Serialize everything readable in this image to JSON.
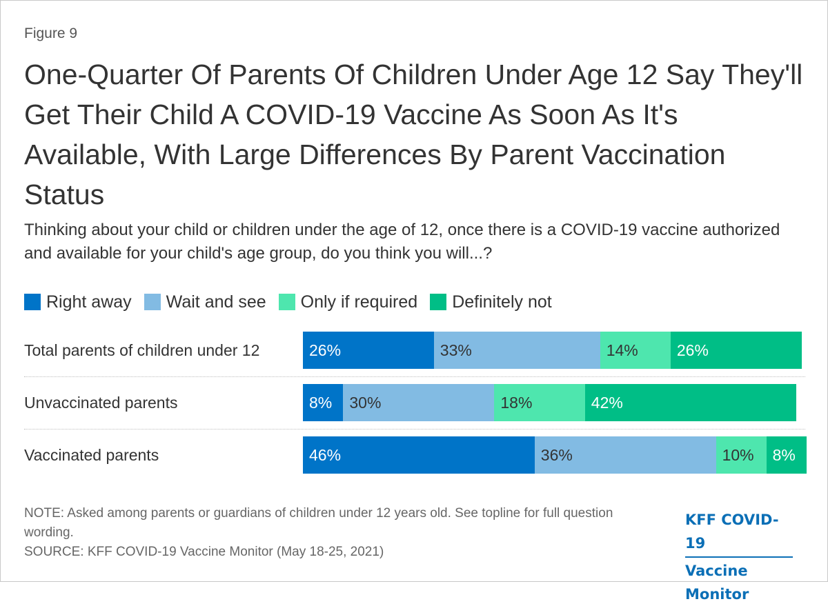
{
  "figure_label": "Figure 9",
  "title": "One-Quarter Of Parents Of Children Under Age 12 Say They'll Get Their Child A COVID-19 Vaccine As Soon As It's Available, With Large Differences By Parent Vaccination Status",
  "subtitle": "Thinking about your child or children under the age of 12, once there is a COVID-19 vaccine authorized and available for your child's age group, do you think you will...?",
  "note": "NOTE: Asked among parents or guardians of children under 12 years old. See topline for full question wording.",
  "source": "SOURCE: KFF COVID-19 Vaccine Monitor (May 18-25, 2021)",
  "logo": {
    "line1": "KFF COVID-19",
    "line2": "Vaccine Monitor"
  },
  "colors": {
    "right_away": "#0074c8",
    "wait_and_see": "#82bbe3",
    "only_if_required": "#4ee6ae",
    "definitely_not": "#00be86",
    "text_dark": "#333333",
    "text_light": "#ffffff"
  },
  "chart_data": {
    "type": "bar",
    "orientation": "horizontal-stacked",
    "title": "One-Quarter Of Parents Of Children Under Age 12 Say They'll Get Their Child A COVID-19 Vaccine As Soon As It's Available, With Large Differences By Parent Vaccination Status",
    "xlim": [
      0,
      100
    ],
    "legend_position": "top-left",
    "categories": [
      "Total parents of children under 12",
      "Unvaccinated parents",
      "Vaccinated parents"
    ],
    "series": [
      {
        "name": "Right away",
        "color": "#0074c8",
        "text_color": "#ffffff",
        "values": [
          26,
          8,
          46
        ],
        "labels": [
          "26%",
          "8%",
          "46%"
        ]
      },
      {
        "name": "Wait and see",
        "color": "#82bbe3",
        "text_color": "#333333",
        "values": [
          33,
          30,
          36
        ],
        "labels": [
          "33%",
          "30%",
          "36%"
        ]
      },
      {
        "name": "Only if required",
        "color": "#4ee6ae",
        "text_color": "#333333",
        "values": [
          14,
          18,
          10
        ],
        "labels": [
          "14%",
          "18%",
          "10%"
        ]
      },
      {
        "name": "Definitely not",
        "color": "#00be86",
        "text_color": "#ffffff",
        "values": [
          26,
          42,
          8
        ],
        "labels": [
          "26%",
          "42%",
          "8%"
        ]
      }
    ]
  }
}
